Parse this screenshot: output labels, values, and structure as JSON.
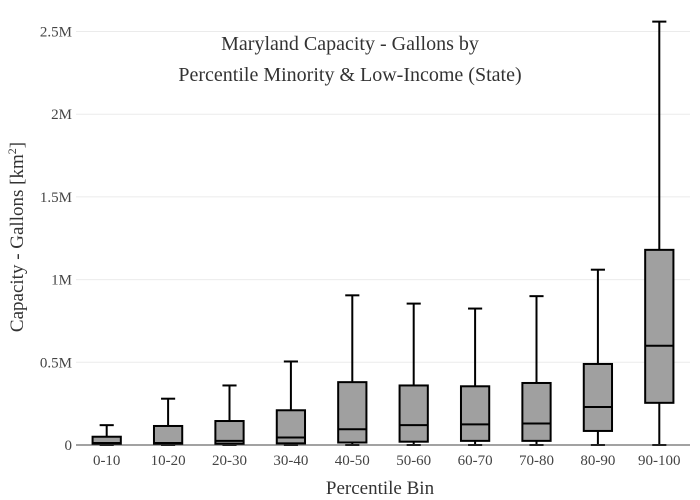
{
  "chart_data": {
    "type": "box",
    "title_line1": "Maryland Capacity - Gallons by",
    "title_line2": "Percentile Minority & Low-Income (State)",
    "xlabel": "Percentile Bin",
    "ylabel_main": "Capacity - Gallons  [km",
    "ylabel_sup": "2",
    "ylabel_end": "]",
    "ylim": [
      0,
      2600000
    ],
    "y_ticks": [
      {
        "value": 0,
        "label": "0"
      },
      {
        "value": 500000,
        "label": "0.5M"
      },
      {
        "value": 1000000,
        "label": "1M"
      },
      {
        "value": 1500000,
        "label": "1.5M"
      },
      {
        "value": 2000000,
        "label": "2M"
      },
      {
        "value": 2500000,
        "label": "2.5M"
      }
    ],
    "grid": true,
    "box_fill": "#a0a0a0",
    "box_stroke": "#000000",
    "categories": [
      "0-10",
      "10-20",
      "20-30",
      "30-40",
      "40-50",
      "50-60",
      "60-70",
      "70-80",
      "80-90",
      "90-100"
    ],
    "boxes": [
      {
        "min": 0,
        "q1": 5000,
        "median": 12000,
        "q3": 50000,
        "max": 120000
      },
      {
        "min": 0,
        "q1": 5000,
        "median": 12000,
        "q3": 115000,
        "max": 280000
      },
      {
        "min": 0,
        "q1": 8000,
        "median": 25000,
        "q3": 145000,
        "max": 360000
      },
      {
        "min": 0,
        "q1": 10000,
        "median": 45000,
        "q3": 210000,
        "max": 505000
      },
      {
        "min": 0,
        "q1": 15000,
        "median": 95000,
        "q3": 380000,
        "max": 905000
      },
      {
        "min": 0,
        "q1": 20000,
        "median": 120000,
        "q3": 360000,
        "max": 855000
      },
      {
        "min": 0,
        "q1": 25000,
        "median": 125000,
        "q3": 355000,
        "max": 825000
      },
      {
        "min": 0,
        "q1": 25000,
        "median": 130000,
        "q3": 375000,
        "max": 900000
      },
      {
        "min": 0,
        "q1": 85000,
        "median": 230000,
        "q3": 490000,
        "max": 1060000
      },
      {
        "min": 0,
        "q1": 255000,
        "median": 600000,
        "q3": 1180000,
        "max": 2560000
      }
    ]
  }
}
